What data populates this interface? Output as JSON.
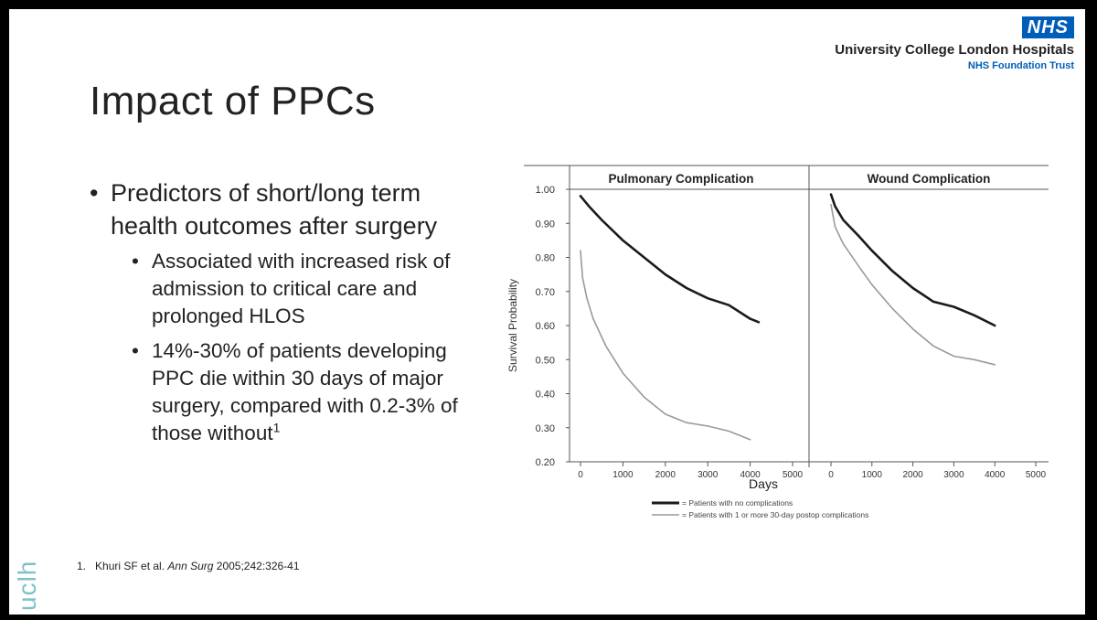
{
  "slide": {
    "title": "Impact of PPCs",
    "logo": {
      "badge": "NHS",
      "name": "University College London Hospitals",
      "subtitle": "NHS Foundation Trust"
    },
    "brand_vertical": "uclh",
    "bullets": {
      "main": "Predictors of short/long term health outcomes after surgery",
      "sub1": "Associated with increased risk of admission to critical care and prolonged HLOS",
      "sub2": "14%-30% of patients developing PPC die within 30 days of major surgery, compared with 0.2-3% of those without",
      "sub2_sup": "1"
    },
    "reference": {
      "number": "1.",
      "authors": "Khuri SF et al. ",
      "journal": "Ann Surg",
      "citation": " 2005;242:326-41"
    }
  },
  "chart_data": {
    "type": "line",
    "ylabel": "Survival Probability",
    "xlabel": "Days",
    "ylim": [
      0.2,
      1.0
    ],
    "yticks": [
      "0.20",
      "0.30",
      "0.40",
      "0.50",
      "0.60",
      "0.70",
      "0.80",
      "0.90",
      "1.00"
    ],
    "xticks": [
      "0",
      "1000",
      "2000",
      "3000",
      "4000",
      "5000"
    ],
    "xlim": [
      0,
      5000
    ],
    "legend": [
      {
        "label": "= Patients with no complications",
        "color": "#1a1a1a"
      },
      {
        "label": "= Patients with 1 or more 30-day postop complications",
        "color": "#9a9a9a"
      }
    ],
    "panels": [
      {
        "title": "Pulmonary Complication",
        "series": [
          {
            "key": "none",
            "color": "#1a1a1a",
            "x": [
              0,
              200,
              500,
              1000,
              1500,
              2000,
              2500,
              3000,
              3500,
              4000,
              4200
            ],
            "y": [
              0.98,
              0.95,
              0.91,
              0.85,
              0.8,
              0.75,
              0.71,
              0.68,
              0.66,
              0.62,
              0.61
            ]
          },
          {
            "key": "complications",
            "color": "#9a9a9a",
            "x": [
              0,
              50,
              150,
              300,
              600,
              1000,
              1500,
              2000,
              2500,
              3000,
              3500,
              4000
            ],
            "y": [
              0.82,
              0.74,
              0.68,
              0.62,
              0.54,
              0.46,
              0.39,
              0.34,
              0.315,
              0.305,
              0.29,
              0.265
            ]
          }
        ]
      },
      {
        "title": "Wound Complication",
        "series": [
          {
            "key": "none",
            "color": "#1a1a1a",
            "x": [
              0,
              100,
              300,
              700,
              1000,
              1500,
              2000,
              2500,
              3000,
              3500,
              4000
            ],
            "y": [
              0.985,
              0.95,
              0.91,
              0.86,
              0.82,
              0.76,
              0.71,
              0.67,
              0.655,
              0.63,
              0.6
            ]
          },
          {
            "key": "complications",
            "color": "#9a9a9a",
            "x": [
              0,
              100,
              300,
              700,
              1000,
              1500,
              2000,
              2500,
              3000,
              3500,
              4000
            ],
            "y": [
              0.955,
              0.89,
              0.84,
              0.77,
              0.72,
              0.65,
              0.59,
              0.54,
              0.51,
              0.5,
              0.485
            ]
          }
        ]
      }
    ]
  }
}
